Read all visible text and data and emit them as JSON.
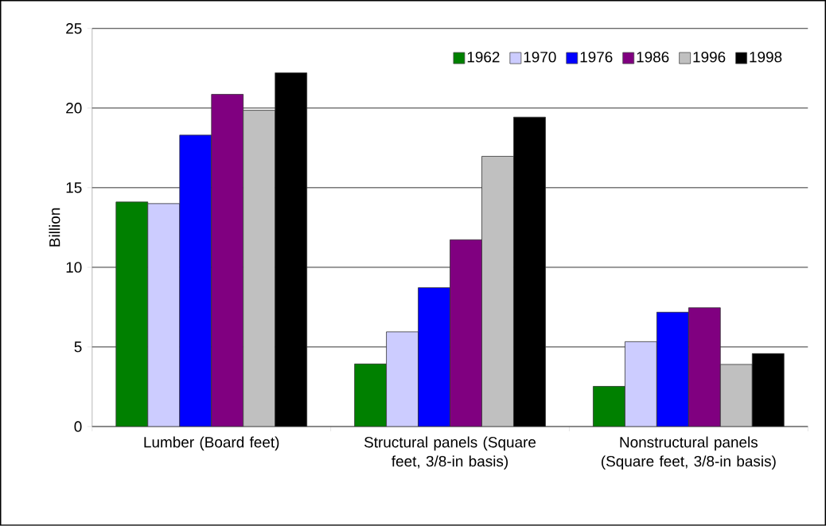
{
  "chart_data": {
    "type": "bar",
    "ylabel": "Billion",
    "categories": [
      "Lumber (Board feet)",
      "Structural panels (Square feet, 3/8-in basis)",
      "Nonstructural panels (Square feet, 3/8-in basis)"
    ],
    "series": [
      {
        "name": "1962",
        "color": "#008000",
        "values": [
          14.1,
          3.93,
          2.52
        ]
      },
      {
        "name": "1970",
        "color": "#ccccff",
        "values": [
          14.0,
          5.95,
          5.33
        ]
      },
      {
        "name": "1976",
        "color": "#0000ff",
        "values": [
          18.3,
          8.72,
          7.18
        ]
      },
      {
        "name": "1986",
        "color": "#800080",
        "values": [
          20.86,
          11.73,
          7.46
        ]
      },
      {
        "name": "1996",
        "color": "#c0c0c0",
        "values": [
          19.86,
          16.97,
          3.9
        ]
      },
      {
        "name": "1998",
        "color": "#000000",
        "values": [
          22.21,
          19.43,
          4.58
        ]
      }
    ],
    "ylim": [
      0,
      25
    ],
    "yticks": [
      0,
      5,
      10,
      15,
      20,
      25
    ],
    "grid": "y",
    "legend": "top right"
  }
}
